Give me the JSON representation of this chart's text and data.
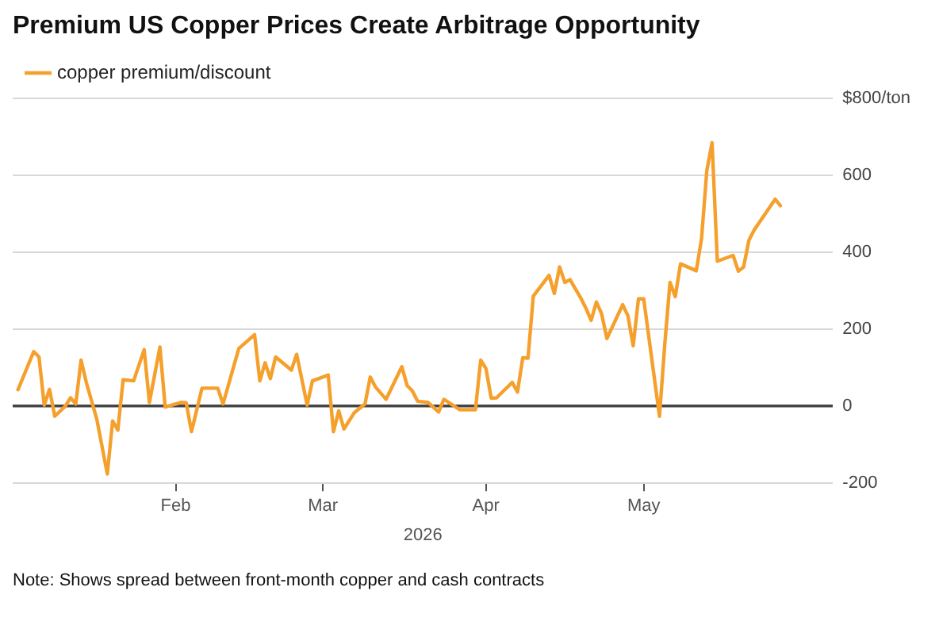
{
  "chart_data": {
    "type": "line",
    "title": "Premium US Copper Prices Create Arbitrage Opportunity",
    "xlabel": "2026",
    "annotations": [
      "Note: Shows spread between front-month copper and cash contracts"
    ],
    "series": [
      {
        "name": "copper premium/discount",
        "color": "#f5a02c",
        "x": [
          "2026-01-02",
          "2026-01-05",
          "2026-01-06",
          "2026-01-07",
          "2026-01-08",
          "2026-01-09",
          "2026-01-11",
          "2026-01-12",
          "2026-01-13",
          "2026-01-14",
          "2026-01-15",
          "2026-01-17",
          "2026-01-19",
          "2026-01-20",
          "2026-01-21",
          "2026-01-22",
          "2026-01-24",
          "2026-01-26",
          "2026-01-27",
          "2026-01-29",
          "2026-01-30",
          "2026-02-02",
          "2026-02-03",
          "2026-02-04",
          "2026-02-06",
          "2026-02-09",
          "2026-02-10",
          "2026-02-13",
          "2026-02-16",
          "2026-02-17",
          "2026-02-18",
          "2026-02-19",
          "2026-02-20",
          "2026-02-23",
          "2026-02-24",
          "2026-02-26",
          "2026-02-27",
          "2026-03-02",
          "2026-03-03",
          "2026-03-04",
          "2026-03-05",
          "2026-03-07",
          "2026-03-09",
          "2026-03-10",
          "2026-03-11",
          "2026-03-13",
          "2026-03-16",
          "2026-03-17",
          "2026-03-18",
          "2026-03-19",
          "2026-03-21",
          "2026-03-23",
          "2026-03-24",
          "2026-03-27",
          "2026-03-30",
          "2026-03-31",
          "2026-04-01",
          "2026-04-02",
          "2026-04-03",
          "2026-04-06",
          "2026-04-07",
          "2026-04-08",
          "2026-04-09",
          "2026-04-10",
          "2026-04-13",
          "2026-04-14",
          "2026-04-15",
          "2026-04-16",
          "2026-04-17",
          "2026-04-19",
          "2026-04-20",
          "2026-04-21",
          "2026-04-22",
          "2026-04-23",
          "2026-04-24",
          "2026-04-27",
          "2026-04-28",
          "2026-04-29",
          "2026-04-30",
          "2026-05-01",
          "2026-05-04",
          "2026-05-05",
          "2026-05-06",
          "2026-05-07",
          "2026-05-08",
          "2026-05-11",
          "2026-05-12",
          "2026-05-13",
          "2026-05-14",
          "2026-05-15",
          "2026-05-18",
          "2026-05-19",
          "2026-05-20",
          "2026-05-21",
          "2026-05-22",
          "2026-05-26",
          "2026-05-27"
        ],
        "values": [
          43,
          142,
          128,
          3,
          44,
          -26,
          0,
          22,
          6,
          120,
          62,
          -34,
          -176,
          -38,
          -62,
          69,
          66,
          147,
          10,
          154,
          -2,
          10,
          9,
          -66,
          47,
          47,
          6,
          150,
          186,
          66,
          113,
          72,
          128,
          94,
          135,
          3,
          66,
          81,
          -66,
          -12,
          -59,
          -16,
          6,
          76,
          50,
          18,
          103,
          54,
          40,
          13,
          10,
          -15,
          18,
          -9,
          -9,
          120,
          98,
          21,
          22,
          62,
          37,
          126,
          125,
          286,
          340,
          293,
          362,
          322,
          329,
          282,
          255,
          223,
          271,
          240,
          176,
          264,
          235,
          157,
          279,
          279,
          -26,
          160,
          322,
          285,
          370,
          352,
          436,
          612,
          685,
          377,
          392,
          351,
          362,
          431,
          458,
          538,
          521
        ]
      }
    ],
    "xlim": [
      "2026-01-01",
      "2026-06-06"
    ],
    "xticks": [
      {
        "value": "2026-02-01",
        "label": "Feb"
      },
      {
        "value": "2026-03-01",
        "label": "Mar"
      },
      {
        "value": "2026-04-01",
        "label": "Apr"
      },
      {
        "value": "2026-05-01",
        "label": "May"
      }
    ],
    "ylim": [
      -200,
      800
    ],
    "yticks": [
      -200,
      0,
      200,
      400,
      600,
      {
        "value": 800,
        "label": "$800/ton"
      }
    ],
    "grid": "y",
    "legend": "top left",
    "marker": "none",
    "line_style": "solid"
  }
}
